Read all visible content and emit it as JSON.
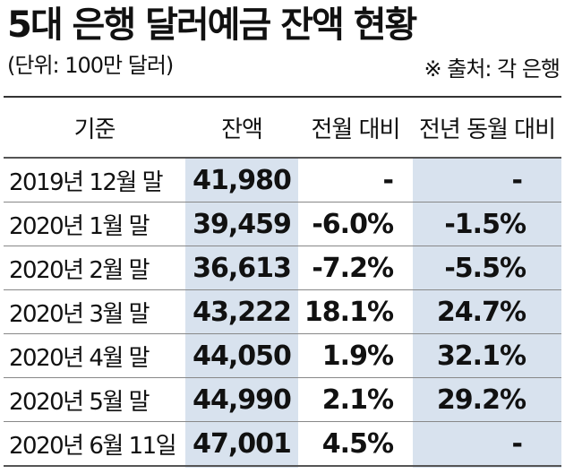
{
  "title": "5대 은행 달러예금 잔액 현황",
  "unit_note": "(단위: 100만 달러)",
  "source_note": "※ 출처: 각 은행",
  "colors": {
    "highlight_column": "#d8e2ee",
    "rule": "#333333"
  },
  "table": {
    "headers": [
      "기준",
      "잔액",
      "전월 대비",
      "전년 동월 대비"
    ],
    "rows": [
      {
        "date": "2019년 12월 말",
        "balance": "41,980",
        "mom": "-",
        "yoy": "-"
      },
      {
        "date": "2020년 1월 말",
        "balance": "39,459",
        "mom": "-6.0%",
        "yoy": "-1.5%"
      },
      {
        "date": "2020년 2월 말",
        "balance": "36,613",
        "mom": "-7.2%",
        "yoy": "-5.5%"
      },
      {
        "date": "2020년 3월 말",
        "balance": "43,222",
        "mom": "18.1%",
        "yoy": "24.7%"
      },
      {
        "date": "2020년 4월 말",
        "balance": "44,050",
        "mom": "1.9%",
        "yoy": "32.1%"
      },
      {
        "date": "2020년 5월 말",
        "balance": "44,990",
        "mom": "2.1%",
        "yoy": "29.2%"
      },
      {
        "date": "2020년 6월 11일",
        "balance": "47,001",
        "mom": "4.5%",
        "yoy": "-"
      }
    ]
  }
}
